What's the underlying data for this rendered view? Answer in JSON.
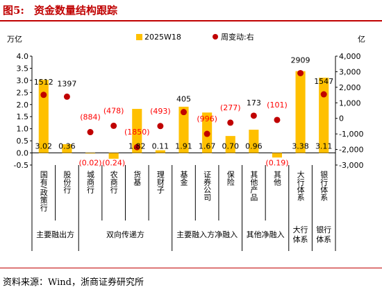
{
  "figure": {
    "label": "图5:",
    "title": "资金数量结构跟踪",
    "source": "资料来源：Wind，浙商证券研究所"
  },
  "colors": {
    "bar": "#FFC000",
    "dot": "#C00000",
    "negative_label": "#FF0000",
    "title": "#C00000"
  },
  "chart_data": {
    "type": "bar",
    "left_unit": "万亿",
    "right_unit": "亿",
    "left_ylim": [
      -0.5,
      4.0
    ],
    "left_ticks": [
      "-0.5",
      "0.0",
      "0.5",
      "1.0",
      "1.5",
      "2.0",
      "2.5",
      "3.0",
      "3.5",
      "4.0"
    ],
    "right_ylim": [
      -3000,
      4000
    ],
    "right_ticks": [
      "-3,000",
      "-2,000",
      "-1,000",
      "0",
      "1,000",
      "2,000",
      "3,000",
      "4,000"
    ],
    "categories": [
      "国有/政策行",
      "股份行",
      "城商行",
      "农商行",
      "货基",
      "理财子",
      "基金",
      "证券公司",
      "保险",
      "其他产品",
      "其他",
      "大行体系",
      "银行体系"
    ],
    "series": [
      {
        "name": "2025W18",
        "axis": "left",
        "type": "bar",
        "values": [
          3.02,
          0.36,
          -0.02,
          -0.24,
          1.82,
          0.11,
          1.91,
          1.67,
          0.7,
          0.96,
          -0.19,
          3.38,
          3.11
        ],
        "labels": [
          "3.02",
          "0.36",
          "(0.02)",
          "(0.24)",
          "1.82",
          "0.11",
          "1.91",
          "1.67",
          "0.70",
          "0.96",
          "(0.19)",
          "3.38",
          "3.11"
        ]
      },
      {
        "name": "周变动:右",
        "axis": "right",
        "type": "scatter",
        "values": [
          1512,
          1397,
          -884,
          -478,
          -1850,
          -493,
          405,
          -996,
          -277,
          173,
          -101,
          2909,
          1547
        ],
        "labels": [
          "1512",
          "1397",
          "(884)",
          "(478)",
          "(1850)",
          "(493)",
          "405",
          "(996)",
          "(277)",
          "173",
          "(101)",
          "2909",
          "1547"
        ]
      }
    ],
    "groups": [
      {
        "label": "主要融出方",
        "start": 0,
        "end": 1
      },
      {
        "label": "双向传递方",
        "start": 2,
        "end": 5
      },
      {
        "label": "主要融入方净融入",
        "start": 6,
        "end": 8
      },
      {
        "label": "其他净融入",
        "start": 9,
        "end": 10
      },
      {
        "label": "大行\n体系",
        "start": 11,
        "end": 11
      },
      {
        "label": "银行\n体系",
        "start": 12,
        "end": 12
      }
    ]
  }
}
